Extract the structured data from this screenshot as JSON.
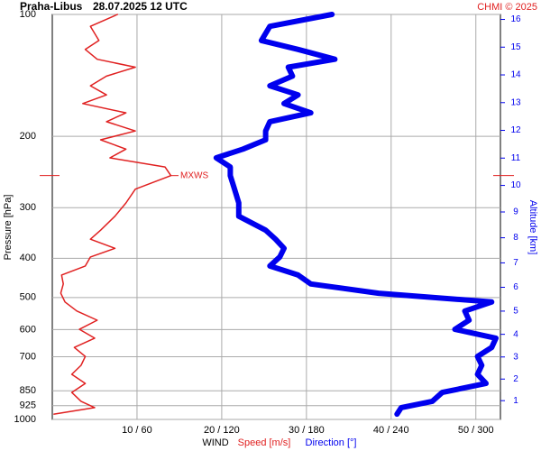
{
  "chart_data": {
    "type": "profile",
    "title": "Praha-Libus",
    "subtitle": "28.07.2025 12 UTC",
    "credit": "CHMI © 2025",
    "y_label": "Pressure [hPa]",
    "y2_label": "Altitude [km]",
    "x_label": "WIND",
    "ylim": [
      100,
      1000
    ],
    "log_y": true,
    "yticks": [
      100,
      200,
      300,
      400,
      500,
      600,
      700,
      850,
      925,
      1000
    ],
    "xlim": [
      0,
      52.9
    ],
    "x2lim": [
      0,
      317.2
    ],
    "xticks": [
      {
        "value": 10,
        "label": "10 / 60"
      },
      {
        "value": 20,
        "label": "20 / 120"
      },
      {
        "value": 30,
        "label": "30 / 180"
      },
      {
        "value": 40,
        "label": "40 / 240"
      },
      {
        "value": 50,
        "label": "50 / 300"
      }
    ],
    "y2ticks": [
      1,
      2,
      3,
      4,
      5,
      6,
      7,
      8,
      9,
      10,
      11,
      12,
      13,
      14,
      15,
      16
    ],
    "grid": true,
    "annotations": [
      {
        "text": "MXWS",
        "pressure": 250,
        "color": "#e02020"
      }
    ],
    "series": [
      {
        "name": "Speed [m/s]",
        "color": "#e02020",
        "axis": "x",
        "pressure": [
          100,
          107,
          116,
          122,
          129,
          135,
          142,
          150,
          158,
          166,
          175,
          184,
          194,
          204,
          215,
          226,
          238,
          250,
          270,
          292,
          315,
          341,
          359,
          378,
          397,
          418,
          440,
          463,
          488,
          513,
          540,
          569,
          599,
          630,
          664,
          699,
          735,
          774,
          815,
          858,
          902,
          935,
          970
        ],
        "values": [
          7.7,
          4.5,
          5.5,
          3.9,
          5.3,
          9.8,
          6.4,
          4.5,
          6.4,
          3.6,
          8.7,
          6.4,
          9.8,
          5.7,
          8.7,
          6.8,
          13.3,
          14.0,
          9.8,
          8.7,
          7.4,
          5.7,
          4.5,
          7.4,
          4.5,
          3.9,
          1.1,
          1.3,
          1.0,
          1.5,
          2.9,
          5.3,
          3.2,
          5.0,
          2.6,
          3.9,
          3.4,
          2.3,
          3.9,
          2.3,
          3.4,
          5.0,
          0.2
        ]
      },
      {
        "name": "Direction [°]",
        "color": "#0000ee",
        "axis": "x2",
        "pressure": [
          100,
          107,
          116,
          122,
          129,
          135,
          142,
          150,
          158,
          166,
          175,
          184,
          194,
          204,
          215,
          226,
          238,
          250,
          270,
          292,
          315,
          341,
          359,
          378,
          397,
          418,
          440,
          463,
          488,
          513,
          540,
          569,
          599,
          630,
          664,
          699,
          735,
          774,
          815,
          858,
          902,
          935,
          970
        ],
        "values": [
          198,
          154,
          148,
          174,
          200,
          167,
          170,
          154,
          174,
          164,
          183,
          154,
          151,
          151,
          135,
          116,
          126,
          126,
          129,
          132,
          132,
          151,
          158,
          164,
          161,
          154,
          174,
          183,
          231,
          311,
          292,
          295,
          285,
          314,
          311,
          301,
          304,
          301,
          307,
          276,
          269,
          247,
          244
        ]
      }
    ]
  }
}
